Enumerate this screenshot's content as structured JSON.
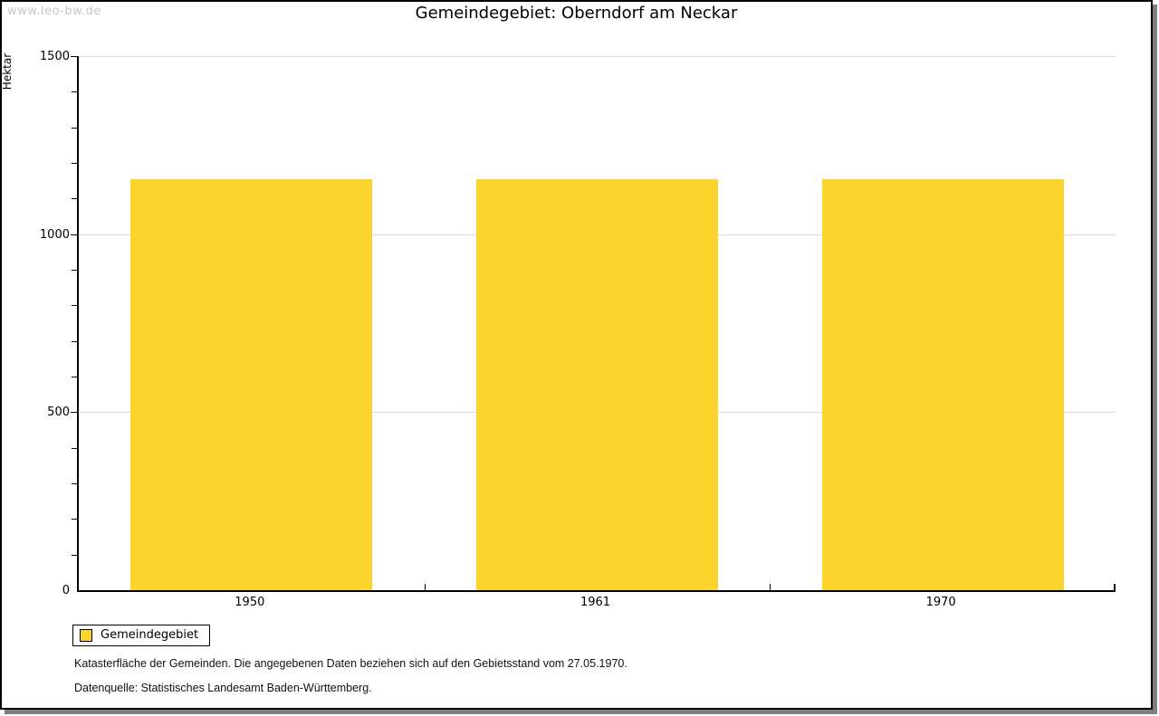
{
  "watermark": "www.leo-bw.de",
  "title": "Gemeindegebiet: Oberndorf am Neckar",
  "colors": {
    "bar": "#FCD42D",
    "grid": "#DCDCDC",
    "axis": "#000000",
    "watermark_text": "#C6C6C6",
    "frame_shadow": "#7F7F7F"
  },
  "chart_data": {
    "type": "bar",
    "categories": [
      "1950",
      "1961",
      "1970"
    ],
    "series": [
      {
        "name": "Gemeindegebiet",
        "color": "#FCD42D",
        "values": [
          1155,
          1155,
          1155
        ]
      }
    ],
    "title": "Gemeindegebiet: Oberndorf am Neckar",
    "xlabel": "",
    "ylabel": "Hektar",
    "ylim": [
      0,
      1500
    ],
    "yticks_major": [
      0,
      500,
      1000,
      1500
    ],
    "ytick_minor_step": 100,
    "grid": "horizontal-major-lines",
    "legend_position": "bottom-left"
  },
  "legend": {
    "items": [
      {
        "label": "Gemeindegebiet",
        "color": "#FCD42D"
      }
    ]
  },
  "footnotes": [
    "Katasterfläche der Gemeinden. Die angegebenen Daten beziehen sich auf den Gebietsstand vom 27.05.1970.",
    "Datenquelle: Statistisches Landesamt Baden-Württemberg."
  ]
}
